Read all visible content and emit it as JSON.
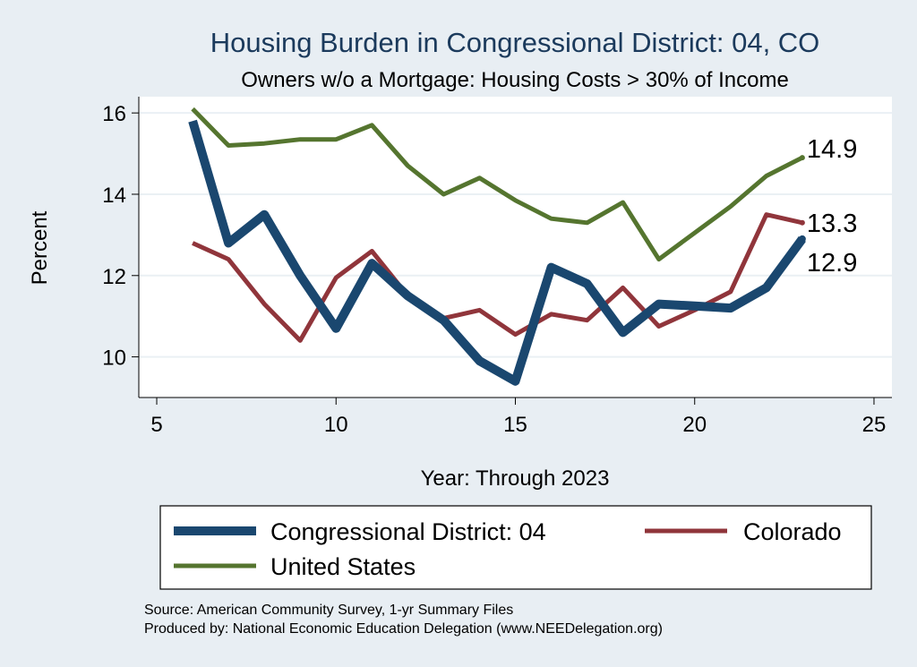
{
  "chart_data": {
    "type": "line",
    "title": "Housing Burden in Congressional District:  04, CO",
    "subtitle": "Owners w/o a Mortgage: Housing Costs > 30% of Income",
    "xlabel": "Year: Through 2023",
    "ylabel": "Percent",
    "xlim": [
      4.5,
      25.5
    ],
    "ylim": [
      9.0,
      16.4
    ],
    "x_ticks": [
      5,
      10,
      15,
      20,
      25
    ],
    "y_ticks": [
      10,
      12,
      14,
      16
    ],
    "grid": true,
    "x": [
      6,
      7,
      8,
      9,
      10,
      11,
      12,
      13,
      14,
      15,
      16,
      17,
      18,
      19,
      20,
      21,
      22,
      23
    ],
    "series": [
      {
        "name": "Congressional District:  04",
        "color": "#1a476f",
        "values": [
          15.8,
          12.8,
          13.5,
          12.0,
          10.7,
          12.3,
          11.5,
          10.9,
          9.9,
          9.4,
          12.2,
          11.8,
          10.6,
          11.3,
          11.25,
          11.2,
          11.7,
          12.9
        ],
        "end_label": "12.9"
      },
      {
        "name": "Colorado",
        "color": "#90353b",
        "values": [
          12.8,
          12.4,
          11.3,
          10.4,
          11.95,
          12.6,
          11.5,
          10.95,
          11.15,
          10.55,
          11.05,
          10.9,
          11.7,
          10.75,
          11.15,
          11.6,
          13.5,
          13.3
        ],
        "end_label": "13.3"
      },
      {
        "name": "United States",
        "color": "#55752f",
        "values": [
          16.1,
          15.2,
          15.25,
          15.35,
          15.35,
          15.7,
          14.7,
          14.0,
          14.4,
          13.85,
          13.4,
          13.3,
          13.8,
          12.4,
          13.05,
          13.7,
          14.45,
          14.9
        ],
        "end_label": "14.9"
      }
    ],
    "legend": {
      "position": "bottom",
      "entries": [
        "Congressional District:  04",
        "Colorado",
        "United States"
      ]
    },
    "source": "Source: American Community Survey, 1-yr Summary Files",
    "produced_by": "Produced by: National Economic Education Delegation (www.NEEDelegation.org)"
  }
}
